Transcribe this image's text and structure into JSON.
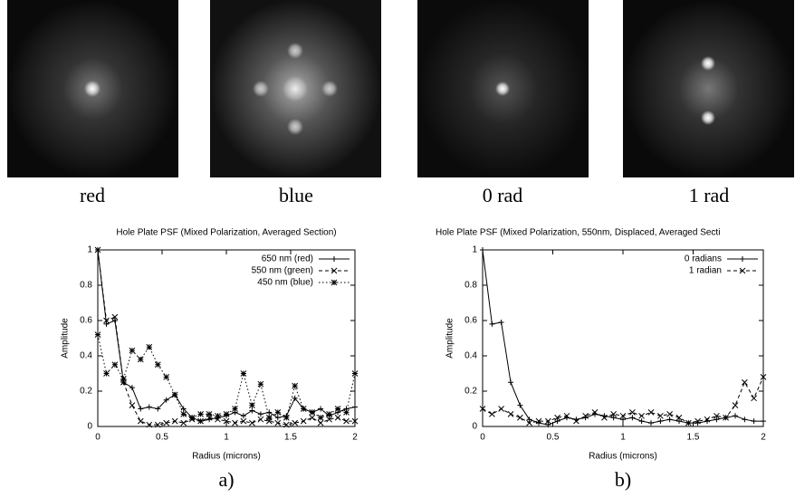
{
  "images": [
    {
      "caption": "red"
    },
    {
      "caption": "blue"
    },
    {
      "caption": "0 rad"
    },
    {
      "caption": "1 rad"
    }
  ],
  "chart_data": [
    {
      "type": "line",
      "title": "Hole Plate PSF (Mixed Polarization, Averaged Section)",
      "x_label": "Radius (microns)",
      "y_label": "Amplitude",
      "caption": "a)",
      "x": [
        0,
        0.067,
        0.133,
        0.2,
        0.267,
        0.333,
        0.4,
        0.467,
        0.533,
        0.6,
        0.667,
        0.733,
        0.8,
        0.867,
        0.933,
        1,
        1.067,
        1.133,
        1.2,
        1.267,
        1.333,
        1.4,
        1.467,
        1.533,
        1.6,
        1.667,
        1.733,
        1.8,
        1.867,
        1.933,
        2
      ],
      "series": [
        {
          "name": "650 nm (red)",
          "color": "#000000",
          "dash": "solid",
          "marker": "+",
          "values": [
            1,
            0.58,
            0.6,
            0.25,
            0.22,
            0.1,
            0.11,
            0.1,
            0.15,
            0.18,
            0.1,
            0.05,
            0.03,
            0.04,
            0.05,
            0.06,
            0.08,
            0.06,
            0.09,
            0.07,
            0.08,
            0.05,
            0.06,
            0.16,
            0.1,
            0.08,
            0.1,
            0.06,
            0.08,
            0.1,
            0.11
          ]
        },
        {
          "name": "550 nm (green)",
          "color": "#000000",
          "dash": "dashed",
          "marker": "x",
          "values": [
            1,
            0.6,
            0.62,
            0.25,
            0.12,
            0.03,
            0.01,
            0.01,
            0.02,
            0.03,
            0.02,
            0.04,
            0.03,
            0.05,
            0.04,
            0.03,
            0.02,
            0.03,
            0.02,
            0.04,
            0.03,
            0.02,
            0.01,
            0.02,
            0.03,
            0.05,
            0.02,
            0.04,
            0.05,
            0.03,
            0.03
          ]
        },
        {
          "name": "450 nm (blue)",
          "color": "#000000",
          "dash": "dotted",
          "marker": "*",
          "values": [
            0.52,
            0.3,
            0.35,
            0.27,
            0.43,
            0.38,
            0.45,
            0.35,
            0.28,
            0.18,
            0.07,
            0.05,
            0.07,
            0.07,
            0.06,
            0.07,
            0.1,
            0.3,
            0.12,
            0.24,
            0.05,
            0.08,
            0.05,
            0.23,
            0.1,
            0.08,
            0.05,
            0.07,
            0.1,
            0.08,
            0.3
          ]
        }
      ],
      "xlim": [
        0,
        2
      ],
      "xticks": [
        0,
        0.5,
        1,
        1.5,
        2
      ],
      "ylim": [
        0,
        1
      ],
      "yticks": [
        0,
        0.2,
        0.4,
        0.6,
        0.8,
        1
      ],
      "legend": "upper right",
      "grid": false
    },
    {
      "type": "line",
      "title": "Hole Plate PSF (Mixed Polarization, 550nm, Displaced, Averaged Secti",
      "x_label": "Radius (microns)",
      "y_label": "Amplitude",
      "caption": "b)",
      "x": [
        0,
        0.067,
        0.133,
        0.2,
        0.267,
        0.333,
        0.4,
        0.467,
        0.533,
        0.6,
        0.667,
        0.733,
        0.8,
        0.867,
        0.933,
        1,
        1.067,
        1.133,
        1.2,
        1.267,
        1.333,
        1.4,
        1.467,
        1.533,
        1.6,
        1.667,
        1.733,
        1.8,
        1.867,
        1.933,
        2
      ],
      "series": [
        {
          "name": "0 radians",
          "color": "#000000",
          "dash": "solid",
          "marker": "+",
          "values": [
            1,
            0.58,
            0.59,
            0.25,
            0.12,
            0.04,
            0.02,
            0.01,
            0.03,
            0.05,
            0.04,
            0.05,
            0.07,
            0.06,
            0.05,
            0.04,
            0.05,
            0.03,
            0.02,
            0.03,
            0.04,
            0.03,
            0.02,
            0.02,
            0.03,
            0.04,
            0.05,
            0.06,
            0.04,
            0.03,
            0.03
          ]
        },
        {
          "name": "1 radian",
          "color": "#000000",
          "dash": "dashed",
          "marker": "x",
          "values": [
            0.1,
            0.07,
            0.1,
            0.07,
            0.05,
            0.02,
            0.03,
            0.03,
            0.05,
            0.06,
            0.03,
            0.06,
            0.08,
            0.05,
            0.07,
            0.06,
            0.08,
            0.06,
            0.08,
            0.06,
            0.07,
            0.05,
            0.02,
            0.03,
            0.04,
            0.06,
            0.05,
            0.12,
            0.25,
            0.16,
            0.28
          ]
        }
      ],
      "xlim": [
        0,
        2
      ],
      "xticks": [
        0,
        0.5,
        1,
        1.5,
        2
      ],
      "ylim": [
        0,
        1
      ],
      "yticks": [
        0,
        0.2,
        0.4,
        0.6,
        0.8,
        1
      ],
      "legend": "upper right",
      "grid": false
    }
  ]
}
